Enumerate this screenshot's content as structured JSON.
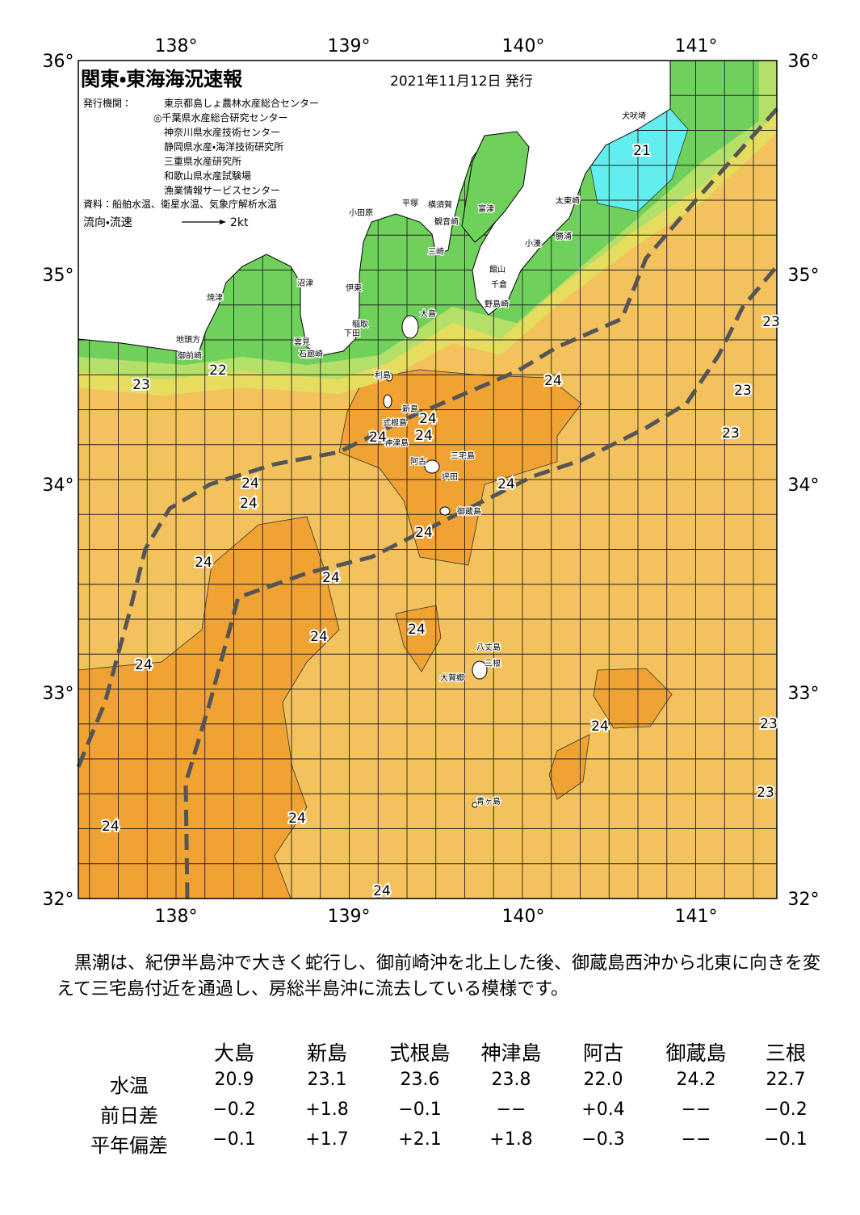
{
  "header": {
    "title": "関東・東海海況速報",
    "date": "2021年11月12日 発行",
    "issuer_label": "発行機関：",
    "issuers": [
      "東京都島しょ農林水産総合センター",
      "◎千葉県水産総合研究センター",
      "神奈川県水産技術センター",
      "静岡県水産・海洋技術研究所",
      "三重県水産研究所",
      "和歌山県水産試験場",
      "漁業情報サービスセンター"
    ],
    "source": "資料：船舶水温、衛星水温、気象庁解析水温",
    "flow_label": "流向・流速",
    "flow_scale": "2kt"
  },
  "map": {
    "lon_labels": [
      "138°",
      "139°",
      "140°",
      "141°"
    ],
    "lat_labels": [
      "36°",
      "35°",
      "34°",
      "33°",
      "32°"
    ],
    "place_names": [
      "犬吠埼",
      "太東崎",
      "勝浦",
      "小湊",
      "館山",
      "千倉",
      "野島崎",
      "富津",
      "観音崎",
      "横須賀",
      "三崎",
      "平塚",
      "小田原",
      "沼津",
      "伊東",
      "焼津",
      "稲取",
      "下田",
      "雲見",
      "石廊崎",
      "地頭方",
      "御前崎",
      "大島",
      "利島",
      "新島",
      "式根島",
      "神津島",
      "三宅島",
      "阿古",
      "坪田",
      "御蔵島",
      "八丈島",
      "三根",
      "大賀郷",
      "青ヶ島"
    ],
    "temperature_labels": [
      "21",
      "22",
      "23",
      "24",
      "24",
      "24",
      "24",
      "24",
      "24",
      "24",
      "24",
      "24",
      "24",
      "24",
      "24",
      "24",
      "24",
      "24",
      "24",
      "24",
      "23",
      "23",
      "23",
      "23",
      "23"
    ]
  },
  "summary": "黒潮は、紀伊半島沖で大きく蛇行し、御前崎沖を北上した後、御蔵島西沖から北東に向きを変えて三宅島付近を通過し、房総半島沖に流去している模様です。",
  "table": {
    "columns": [
      "大島",
      "新島",
      "式根島",
      "神津島",
      "阿古",
      "御蔵島",
      "三根"
    ],
    "rows": [
      {
        "label": "水温",
        "values": [
          "20.9",
          "23.1",
          "23.6",
          "23.8",
          "22.0",
          "24.2",
          "22.7"
        ]
      },
      {
        "label": "前日差",
        "values": [
          "−0.2",
          "+1.8",
          "−0.1",
          "−−",
          "+0.4",
          "−−",
          "−0.2"
        ]
      },
      {
        "label": "平年偏差",
        "values": [
          "−0.1",
          "+1.7",
          "+2.1",
          "+1.8",
          "−0.3",
          "−−",
          "−0.1"
        ]
      }
    ]
  }
}
